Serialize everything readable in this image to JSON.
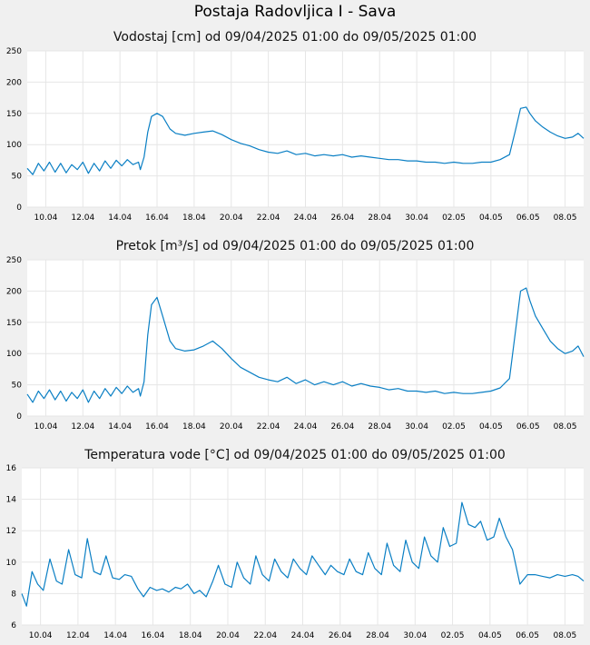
{
  "station_title": "Postaja Radovljica I - Sava",
  "colors": {
    "series": "#0a7fc4",
    "grid": "#e6e6e6",
    "plot_bg": "#ffffff",
    "page_bg": "#f0f0f0"
  },
  "chart_data": [
    {
      "type": "line",
      "title": "Vodostaj [cm] od 09/04/2025 01:00 do 09/05/2025 01:00",
      "xlabel": "",
      "ylabel": "",
      "x_ticks": [
        "10.04",
        "12.04",
        "14.04",
        "16.04",
        "18.04",
        "20.04",
        "22.04",
        "24.04",
        "26.04",
        "28.04",
        "30.04",
        "02.05",
        "04.05",
        "06.05",
        "08.05"
      ],
      "y_ticks": [
        "0",
        "50",
        "100",
        "150",
        "200",
        "250"
      ],
      "xlim": [
        0,
        30
      ],
      "ylim": [
        0,
        250
      ],
      "grid": true,
      "series": [
        {
          "x": [
            0,
            0.3,
            0.6,
            0.9,
            1.2,
            1.5,
            1.8,
            2.1,
            2.4,
            2.7,
            3,
            3.3,
            3.6,
            3.9,
            4.2,
            4.5,
            4.8,
            5.1,
            5.4,
            5.7,
            6,
            6.1,
            6.3,
            6.5,
            6.7,
            7,
            7.3,
            7.7,
            8,
            8.5,
            9,
            9.5,
            10,
            10.5,
            11,
            11.5,
            12,
            12.5,
            13,
            13.5,
            14,
            14.5,
            15,
            15.5,
            16,
            16.5,
            17,
            17.5,
            18,
            18.5,
            19,
            19.5,
            20,
            20.5,
            21,
            21.5,
            22,
            22.5,
            23,
            23.5,
            24,
            24.5,
            25,
            25.5,
            26,
            26.3,
            26.6,
            26.9,
            27.1,
            27.4,
            27.8,
            28.2,
            28.6,
            29,
            29.4,
            29.7,
            30
          ],
          "y": [
            62,
            52,
            70,
            58,
            72,
            56,
            70,
            55,
            68,
            60,
            72,
            54,
            70,
            58,
            74,
            62,
            75,
            66,
            76,
            68,
            72,
            60,
            80,
            120,
            145,
            150,
            145,
            125,
            118,
            115,
            118,
            120,
            122,
            116,
            108,
            102,
            98,
            92,
            88,
            86,
            90,
            84,
            86,
            82,
            84,
            82,
            84,
            80,
            82,
            80,
            78,
            76,
            76,
            74,
            74,
            72,
            72,
            70,
            72,
            70,
            70,
            72,
            72,
            76,
            84,
            120,
            158,
            160,
            150,
            138,
            128,
            120,
            114,
            110,
            112,
            118,
            110
          ]
        }
      ]
    },
    {
      "type": "line",
      "title": "Pretok [m³/s] od 09/04/2025 01:00 do 09/05/2025 01:00",
      "xlabel": "",
      "ylabel": "",
      "x_ticks": [
        "10.04",
        "12.04",
        "14.04",
        "16.04",
        "18.04",
        "20.04",
        "22.04",
        "24.04",
        "26.04",
        "28.04",
        "30.04",
        "02.05",
        "04.05",
        "06.05",
        "08.05"
      ],
      "y_ticks": [
        "0",
        "50",
        "100",
        "150",
        "200",
        "250"
      ],
      "xlim": [
        0,
        30
      ],
      "ylim": [
        0,
        250
      ],
      "grid": true,
      "series": [
        {
          "x": [
            0,
            0.3,
            0.6,
            0.9,
            1.2,
            1.5,
            1.8,
            2.1,
            2.4,
            2.7,
            3,
            3.3,
            3.6,
            3.9,
            4.2,
            4.5,
            4.8,
            5.1,
            5.4,
            5.7,
            6,
            6.1,
            6.3,
            6.5,
            6.7,
            7,
            7.3,
            7.7,
            8,
            8.5,
            9,
            9.5,
            10,
            10.5,
            11,
            11.5,
            12,
            12.5,
            13,
            13.5,
            14,
            14.5,
            15,
            15.5,
            16,
            16.5,
            17,
            17.5,
            18,
            18.5,
            19,
            19.5,
            20,
            20.5,
            21,
            21.5,
            22,
            22.5,
            23,
            23.5,
            24,
            24.5,
            25,
            25.5,
            26,
            26.3,
            26.6,
            26.9,
            27.1,
            27.4,
            27.8,
            28.2,
            28.6,
            29,
            29.4,
            29.7,
            30
          ],
          "y": [
            35,
            22,
            40,
            28,
            42,
            26,
            40,
            24,
            38,
            28,
            42,
            22,
            40,
            28,
            44,
            32,
            46,
            36,
            48,
            38,
            44,
            32,
            55,
            130,
            178,
            190,
            160,
            120,
            108,
            104,
            106,
            112,
            120,
            108,
            92,
            78,
            70,
            62,
            58,
            55,
            62,
            52,
            58,
            50,
            55,
            50,
            55,
            48,
            52,
            48,
            46,
            42,
            44,
            40,
            40,
            38,
            40,
            36,
            38,
            36,
            36,
            38,
            40,
            45,
            60,
            130,
            200,
            205,
            185,
            160,
            140,
            120,
            108,
            100,
            104,
            112,
            95
          ]
        }
      ]
    },
    {
      "type": "line",
      "title": "Temperatura vode [°C] od 09/04/2025 01:00 do 09/05/2025 01:00",
      "xlabel": "",
      "ylabel": "",
      "x_ticks": [
        "10.04",
        "12.04",
        "14.04",
        "16.04",
        "18.04",
        "20.04",
        "22.04",
        "24.04",
        "26.04",
        "28.04",
        "30.04",
        "02.05",
        "04.05",
        "06.05",
        "08.05"
      ],
      "y_ticks": [
        "6",
        "8",
        "10",
        "12",
        "14",
        "16"
      ],
      "xlim": [
        0,
        30
      ],
      "ylim": [
        6,
        16
      ],
      "grid": true,
      "series": [
        {
          "x": [
            0,
            0.25,
            0.55,
            0.85,
            1.15,
            1.5,
            1.85,
            2.15,
            2.5,
            2.85,
            3.2,
            3.5,
            3.85,
            4.2,
            4.5,
            4.85,
            5.2,
            5.5,
            5.85,
            6.2,
            6.5,
            6.85,
            7.2,
            7.5,
            7.85,
            8.2,
            8.5,
            8.85,
            9.2,
            9.5,
            9.85,
            10.2,
            10.5,
            10.85,
            11.2,
            11.5,
            11.85,
            12.2,
            12.5,
            12.85,
            13.2,
            13.5,
            13.85,
            14.2,
            14.5,
            14.85,
            15.2,
            15.5,
            15.85,
            16.2,
            16.5,
            16.85,
            17.2,
            17.5,
            17.85,
            18.2,
            18.5,
            18.85,
            19.2,
            19.5,
            19.85,
            20.2,
            20.5,
            20.85,
            21.2,
            21.5,
            21.85,
            22.2,
            22.5,
            22.85,
            23.2,
            23.5,
            23.85,
            24.2,
            24.5,
            24.85,
            25.2,
            25.5,
            25.85,
            26.2,
            26.6,
            27,
            27.4,
            27.8,
            28.2,
            28.6,
            29,
            29.4,
            29.7,
            30
          ],
          "y": [
            8,
            7.2,
            9.4,
            8.6,
            8.2,
            10.2,
            8.8,
            8.6,
            10.8,
            9.2,
            9,
            11.5,
            9.4,
            9.2,
            10.4,
            9,
            8.9,
            9.2,
            9.1,
            8.3,
            7.8,
            8.4,
            8.2,
            8.3,
            8.1,
            8.4,
            8.3,
            8.6,
            8,
            8.2,
            7.8,
            8.8,
            9.8,
            8.6,
            8.4,
            10,
            9,
            8.6,
            10.4,
            9.2,
            8.8,
            10.2,
            9.4,
            9,
            10.2,
            9.6,
            9.2,
            10.4,
            9.8,
            9.2,
            9.8,
            9.4,
            9.2,
            10.2,
            9.4,
            9.2,
            10.6,
            9.6,
            9.2,
            11.2,
            9.8,
            9.4,
            11.4,
            10,
            9.6,
            11.6,
            10.4,
            10,
            12.2,
            11,
            11.2,
            13.8,
            12.4,
            12.2,
            12.6,
            11.4,
            11.6,
            12.8,
            11.6,
            10.8,
            8.6,
            9.2,
            9.2,
            9.1,
            9,
            9.2,
            9.1,
            9.2,
            9.1,
            8.8
          ]
        }
      ]
    }
  ]
}
